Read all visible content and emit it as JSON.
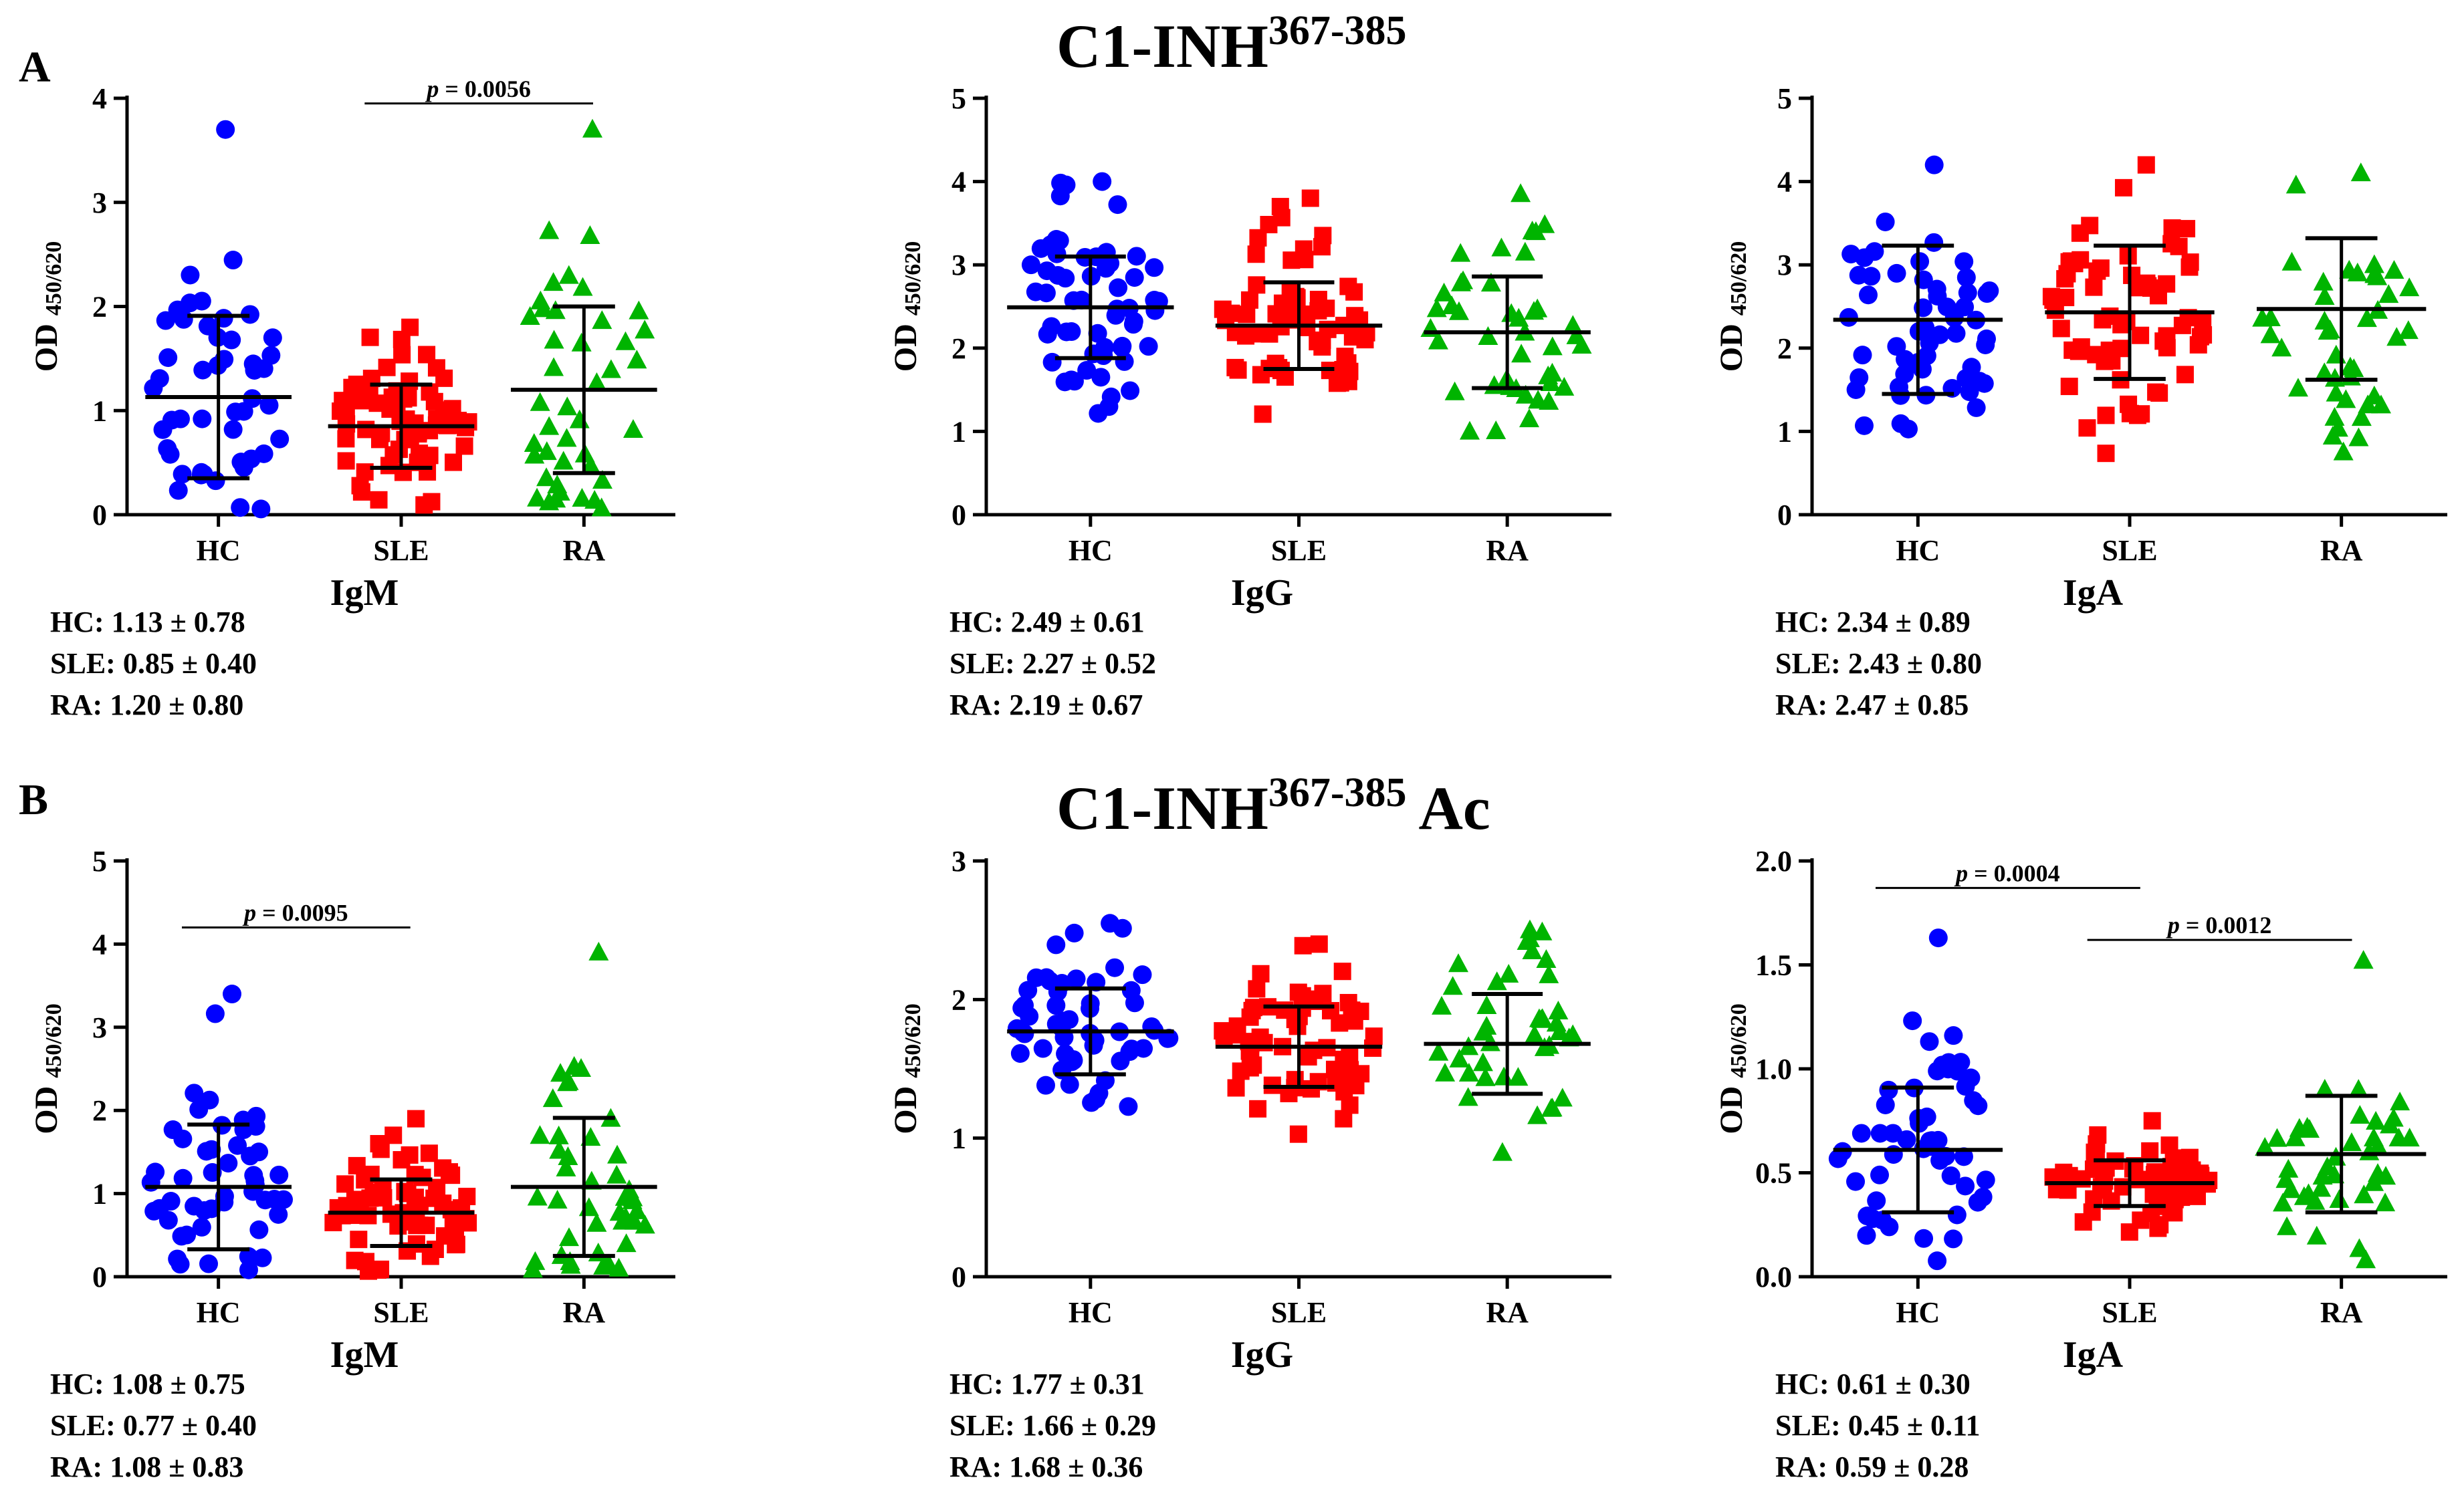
{
  "rows": [
    {
      "letter": "A",
      "title_main": "C1-INH",
      "title_sup": "367-385",
      "title_suffix": ""
    },
    {
      "letter": "B",
      "title_main": "C1-INH",
      "title_sup": "367-385",
      "title_suffix": " Ac"
    }
  ],
  "groups": [
    "HC",
    "SLE",
    "RA"
  ],
  "colors": {
    "HC": "#0000ff",
    "SLE": "#ff0000",
    "RA": "#00b400",
    "axis": "#000000"
  },
  "marker_shapes": {
    "HC": "circle",
    "SLE": "square",
    "RA": "triangle"
  },
  "ylabel_main": "OD",
  "ylabel_sub": "450/620",
  "chart_data": [
    {
      "id": "A-IgM",
      "type": "scatter",
      "xlabel": "IgM",
      "ylim": [
        0,
        4
      ],
      "yticks": [
        "0",
        "1",
        "2",
        "3",
        "4"
      ],
      "categories": [
        "HC",
        "SLE",
        "RA"
      ],
      "series": [
        {
          "name": "HC",
          "mean": 1.13,
          "sd": 0.78,
          "summary": "HC: 1.13 ± 0.78",
          "n": 48,
          "max": 3.7
        },
        {
          "name": "SLE",
          "mean": 0.85,
          "sd": 0.4,
          "summary": "SLE: 0.85 ± 0.40",
          "n": 70,
          "max": 1.8
        },
        {
          "name": "RA",
          "mean": 1.2,
          "sd": 0.8,
          "summary": "RA: 1.20 ± 0.80",
          "n": 42,
          "max": 3.7
        }
      ],
      "annotations": [
        {
          "text": "p = 0.0056",
          "from": "SLE",
          "to": "RA",
          "y": 3.95
        }
      ]
    },
    {
      "id": "A-IgG",
      "type": "scatter",
      "xlabel": "IgG",
      "ylim": [
        0,
        5
      ],
      "yticks": [
        "0",
        "1",
        "2",
        "3",
        "4",
        "5"
      ],
      "categories": [
        "HC",
        "SLE",
        "RA"
      ],
      "series": [
        {
          "name": "HC",
          "mean": 2.49,
          "sd": 0.61,
          "summary": "HC: 2.49 ± 0.61",
          "n": 58,
          "max": 4.0
        },
        {
          "name": "SLE",
          "mean": 2.27,
          "sd": 0.52,
          "summary": "SLE: 2.27 ± 0.52",
          "n": 66,
          "max": 3.8
        },
        {
          "name": "RA",
          "mean": 2.19,
          "sd": 0.67,
          "summary": "RA: 2.19 ± 0.67",
          "n": 42,
          "max": 3.85
        }
      ],
      "annotations": []
    },
    {
      "id": "A-IgA",
      "type": "scatter",
      "xlabel": "IgA",
      "ylim": [
        0,
        5
      ],
      "yticks": [
        "0",
        "1",
        "2",
        "3",
        "4",
        "5"
      ],
      "categories": [
        "HC",
        "SLE",
        "RA"
      ],
      "series": [
        {
          "name": "HC",
          "mean": 2.34,
          "sd": 0.89,
          "summary": "HC: 2.34 ± 0.89",
          "n": 54,
          "max": 4.2
        },
        {
          "name": "SLE",
          "mean": 2.43,
          "sd": 0.8,
          "summary": "SLE: 2.43 ± 0.80",
          "n": 66,
          "max": 4.2
        },
        {
          "name": "RA",
          "mean": 2.47,
          "sd": 0.85,
          "summary": "RA: 2.47 ± 0.85",
          "n": 42,
          "max": 4.1
        }
      ],
      "annotations": []
    },
    {
      "id": "B-IgM",
      "type": "scatter",
      "xlabel": "IgM",
      "ylim": [
        0,
        5
      ],
      "yticks": [
        "0",
        "1",
        "2",
        "3",
        "4",
        "5"
      ],
      "categories": [
        "HC",
        "SLE",
        "RA"
      ],
      "series": [
        {
          "name": "HC",
          "mean": 1.08,
          "sd": 0.75,
          "summary": "HC: 1.08 ± 0.75",
          "n": 50,
          "max": 3.4
        },
        {
          "name": "SLE",
          "mean": 0.77,
          "sd": 0.4,
          "summary": "SLE: 0.77 ± 0.40",
          "n": 68,
          "max": 1.9
        },
        {
          "name": "RA",
          "mean": 1.08,
          "sd": 0.83,
          "summary": "RA: 1.08 ± 0.83",
          "n": 42,
          "max": 3.9
        }
      ],
      "annotations": [
        {
          "text": "p = 0.0095",
          "from": "HC",
          "to": "SLE",
          "y": 4.2
        }
      ]
    },
    {
      "id": "B-IgG",
      "type": "scatter",
      "xlabel": "IgG",
      "ylim": [
        0,
        3
      ],
      "yticks": [
        "0",
        "1",
        "2",
        "3"
      ],
      "categories": [
        "HC",
        "SLE",
        "RA"
      ],
      "series": [
        {
          "name": "HC",
          "mean": 1.77,
          "sd": 0.31,
          "summary": "HC: 1.77 ± 0.31",
          "n": 56,
          "max": 2.55
        },
        {
          "name": "SLE",
          "mean": 1.66,
          "sd": 0.29,
          "summary": "SLE: 1.66 ± 0.29",
          "n": 66,
          "max": 2.4
        },
        {
          "name": "RA",
          "mean": 1.68,
          "sd": 0.36,
          "summary": "RA: 1.68 ± 0.36",
          "n": 42,
          "max": 2.5
        }
      ],
      "annotations": []
    },
    {
      "id": "B-IgA",
      "type": "scatter",
      "xlabel": "IgA",
      "ylim": [
        0,
        2
      ],
      "yticks": [
        "0.0",
        "0.5",
        "1.0",
        "1.5",
        "2.0"
      ],
      "categories": [
        "HC",
        "SLE",
        "RA"
      ],
      "series": [
        {
          "name": "HC",
          "mean": 0.61,
          "sd": 0.3,
          "summary": "HC: 0.61 ± 0.30",
          "n": 52,
          "max": 1.63
        },
        {
          "name": "SLE",
          "mean": 0.45,
          "sd": 0.11,
          "summary": "SLE: 0.45 ± 0.11",
          "n": 70,
          "max": 0.75
        },
        {
          "name": "RA",
          "mean": 0.59,
          "sd": 0.28,
          "summary": "RA: 0.59 ± 0.28",
          "n": 42,
          "max": 1.52
        }
      ],
      "annotations": [
        {
          "text": "p = 0.0004",
          "from": "HC",
          "to": "SLE",
          "y": 1.87
        },
        {
          "text": "p = 0.0012",
          "from": "SLE",
          "to": "RA",
          "y": 1.62
        }
      ]
    }
  ]
}
